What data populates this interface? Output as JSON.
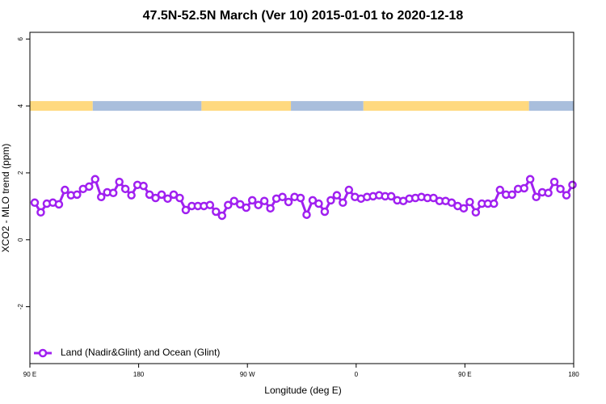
{
  "chart_data": {
    "type": "line",
    "title": "47.5N-52.5N March (Ver 10)   2015-01-01 to 2020-12-18",
    "xlabel": "Longitude (deg E)",
    "ylabel": "XCO2 - MLO trend (ppm)",
    "xlim": [
      90,
      540
    ],
    "ylim": [
      -3.7,
      6.2
    ],
    "xticks": [
      {
        "value": 90,
        "label": "90 E"
      },
      180,
      {
        "value": 270,
        "label": "90 W"
      },
      {
        "value": 360,
        "label": "0"
      },
      {
        "value": 450,
        "label": "90 E"
      },
      {
        "value": 540,
        "label": "180"
      }
    ],
    "yticks": [
      -2,
      0,
      2,
      4,
      6
    ],
    "legend": "bottom-left",
    "band_level": 4,
    "band": [
      {
        "start": 90,
        "end": 142,
        "color": "#ffd97f"
      },
      {
        "start": 142,
        "end": 232,
        "color": "#a9bedc"
      },
      {
        "start": 232,
        "end": 306,
        "color": "#ffd97f"
      },
      {
        "start": 306,
        "end": 366,
        "color": "#a9bedc"
      },
      {
        "start": 366,
        "end": 503,
        "color": "#ffd97f"
      },
      {
        "start": 503,
        "end": 540,
        "color": "#a9bedc"
      }
    ],
    "series": [
      {
        "name": "Land (Nadir&Glint) and Ocean (Glint)",
        "color": "#a020f0",
        "x": [
          94,
          99,
          104,
          109,
          114,
          119,
          124,
          129,
          134,
          139,
          144,
          149,
          154,
          159,
          164,
          169,
          174,
          179,
          184,
          189,
          194,
          199,
          204,
          209,
          214,
          219,
          224,
          229,
          234,
          239,
          244,
          249,
          254,
          259,
          264,
          269,
          274,
          279,
          284,
          289,
          294,
          299,
          304,
          309,
          314,
          319,
          324,
          329,
          334,
          339,
          344,
          349,
          354,
          359,
          364,
          369,
          374,
          379,
          384,
          389,
          394,
          399,
          404,
          409,
          414,
          419,
          424,
          429,
          434,
          439,
          444,
          449,
          454,
          459,
          464,
          469,
          474,
          479,
          484,
          489,
          494,
          499,
          504,
          509,
          514,
          519,
          524,
          529,
          534,
          539
        ],
        "values": [
          1.11,
          0.82,
          1.08,
          1.11,
          1.06,
          1.49,
          1.33,
          1.35,
          1.52,
          1.59,
          1.81,
          1.28,
          1.42,
          1.4,
          1.73,
          1.52,
          1.33,
          1.64,
          1.61,
          1.35,
          1.25,
          1.35,
          1.23,
          1.35,
          1.25,
          0.89,
          1.01,
          1.01,
          1.01,
          1.04,
          0.84,
          0.72,
          1.04,
          1.16,
          1.06,
          0.96,
          1.18,
          1.04,
          1.16,
          0.94,
          1.23,
          1.28,
          1.13,
          1.28,
          1.25,
          0.75,
          1.18,
          1.08,
          0.84,
          1.18,
          1.33,
          1.11,
          1.49,
          1.28,
          1.23,
          1.28,
          1.3,
          1.33,
          1.3,
          1.3,
          1.18,
          1.16,
          1.23,
          1.25,
          1.28,
          1.25,
          1.25,
          1.16,
          1.16,
          1.11,
          1.01,
          0.94,
          1.13,
          0.82,
          1.08,
          1.08,
          1.08,
          1.49,
          1.35,
          1.35,
          1.52,
          1.54,
          1.81,
          1.28,
          1.42,
          1.4,
          1.73,
          1.52,
          1.33,
          1.64
        ]
      }
    ]
  }
}
